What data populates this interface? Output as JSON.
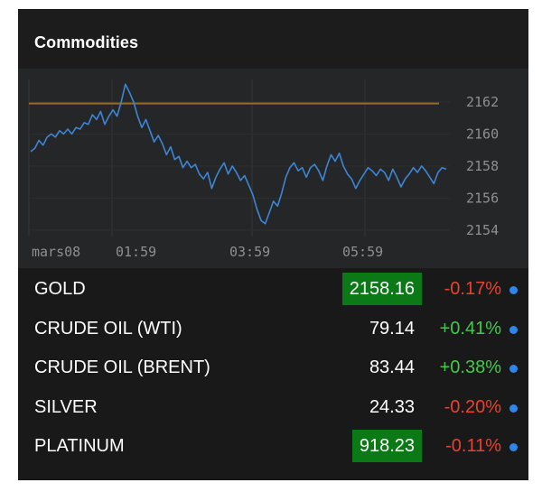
{
  "widget": {
    "title": "Commodities"
  },
  "chart_data": {
    "type": "line",
    "x_tick_labels": [
      "mars08",
      "01:59",
      "03:59",
      "05:59"
    ],
    "y_ticks": [
      2154,
      2156,
      2158,
      2160,
      2162
    ],
    "ylim": [
      2153.6,
      2163.4
    ],
    "reference_line": 2161.9,
    "line_color": "#3d86d6",
    "reference_color": "#9c6a2c",
    "series": [
      {
        "values": [
          2158.9,
          2159.1,
          2159.6,
          2159.3,
          2159.8,
          2160.0,
          2159.8,
          2160.2,
          2160.0,
          2160.3,
          2160.0,
          2160.4,
          2160.3,
          2160.7,
          2160.6,
          2161.2,
          2160.9,
          2161.4,
          2160.6,
          2161.1,
          2161.5,
          2161.1,
          2162.0,
          2163.1,
          2162.6,
          2162.0,
          2161.1,
          2160.4,
          2160.9,
          2160.2,
          2159.5,
          2159.9,
          2159.4,
          2158.7,
          2159.2,
          2158.4,
          2158.6,
          2157.9,
          2158.3,
          2157.9,
          2158.1,
          2157.5,
          2157.2,
          2157.6,
          2156.6,
          2157.3,
          2157.8,
          2158.2,
          2157.5,
          2158.0,
          2157.6,
          2157.1,
          2157.4,
          2156.8,
          2156.2,
          2155.3,
          2154.6,
          2154.4,
          2155.1,
          2155.8,
          2155.5,
          2156.3,
          2157.3,
          2157.9,
          2158.2,
          2157.7,
          2157.9,
          2157.3,
          2157.9,
          2158.1,
          2157.7,
          2157.1,
          2158.0,
          2158.7,
          2158.3,
          2158.8,
          2158.0,
          2157.5,
          2157.2,
          2156.6,
          2157.1,
          2157.5,
          2157.9,
          2157.7,
          2157.4,
          2157.8,
          2157.6,
          2157.1,
          2157.8,
          2157.3,
          2156.7,
          2157.2,
          2157.5,
          2157.9,
          2157.6,
          2158.0,
          2157.7,
          2157.3,
          2156.9,
          2157.6,
          2157.9,
          2157.8
        ]
      }
    ]
  },
  "commodities": [
    {
      "name": "GOLD",
      "price": "2158.16",
      "change": "-0.17%",
      "direction": "neg",
      "highlight": true
    },
    {
      "name": "CRUDE OIL (WTI)",
      "price": "79.14",
      "change": "+0.41%",
      "direction": "pos",
      "highlight": false
    },
    {
      "name": "CRUDE OIL (BRENT)",
      "price": "83.44",
      "change": "+0.38%",
      "direction": "pos",
      "highlight": false
    },
    {
      "name": "SILVER",
      "price": "24.33",
      "change": "-0.20%",
      "direction": "neg",
      "highlight": false
    },
    {
      "name": "PLATINUM",
      "price": "918.23",
      "change": "-0.11%",
      "direction": "neg",
      "highlight": true
    }
  ],
  "colors": {
    "highlight_bg": "#0b7a16",
    "negative": "#e8422e",
    "positive": "#43c94a",
    "dot": "#2f86e8"
  }
}
